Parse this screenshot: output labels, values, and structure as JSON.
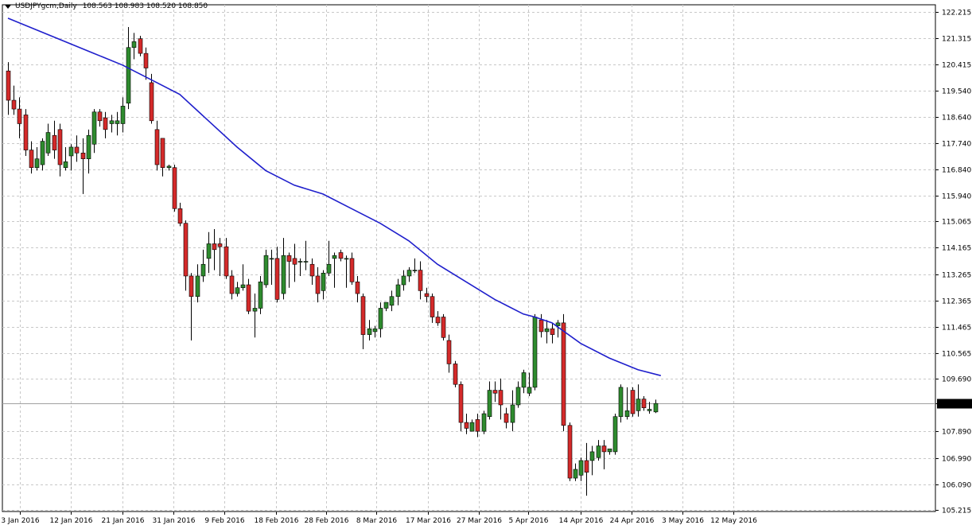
{
  "header": {
    "symbol_label": "USDJPYgcm,Daily",
    "ohlc_values": "108.563 108.983 108.520 108.850"
  },
  "colors": {
    "bull": "#2e8b2e",
    "bear": "#d42a2a",
    "ma_line": "#1f1fcc",
    "grid": "#c8c8c8",
    "axis": "#000000",
    "price_tag_bg": "#000000",
    "price_tag_text": "#ffffff"
  },
  "chart_data": {
    "type": "candlestick",
    "symbol": "USDJPYgcm",
    "timeframe": "Daily",
    "y_ticks": [
      "122.215",
      "121.315",
      "120.415",
      "119.540",
      "118.640",
      "117.740",
      "116.840",
      "115.940",
      "115.065",
      "114.165",
      "113.265",
      "112.365",
      "111.465",
      "110.565",
      "109.690",
      "108.850",
      "107.890",
      "106.990",
      "106.090",
      "105.215"
    ],
    "ylim": [
      105.215,
      122.215
    ],
    "current_price": "108.850",
    "x_tick_labels": [
      "3 Jan 2016",
      "12 Jan 2016",
      "21 Jan 2016",
      "31 Jan 2016",
      "9 Feb 2016",
      "18 Feb 2016",
      "28 Feb 2016",
      "8 Mar 2016",
      "17 Mar 2016",
      "27 Mar 2016",
      "5 Apr 2016",
      "14 Apr 2016",
      "24 Apr 2016",
      "3 May 2016",
      "12 May 2016"
    ],
    "candles": [
      {
        "o": 120.2,
        "h": 120.5,
        "l": 118.7,
        "c": 119.2
      },
      {
        "o": 119.2,
        "h": 119.7,
        "l": 118.7,
        "c": 118.9
      },
      {
        "o": 118.9,
        "h": 119.3,
        "l": 117.9,
        "c": 118.4
      },
      {
        "o": 118.7,
        "h": 118.9,
        "l": 117.3,
        "c": 117.5
      },
      {
        "o": 117.5,
        "h": 117.8,
        "l": 116.7,
        "c": 116.9
      },
      {
        "o": 116.9,
        "h": 117.6,
        "l": 116.8,
        "c": 117.2
      },
      {
        "o": 117.0,
        "h": 117.9,
        "l": 116.8,
        "c": 117.8
      },
      {
        "o": 117.4,
        "h": 118.4,
        "l": 117.3,
        "c": 118.1
      },
      {
        "o": 118.0,
        "h": 118.5,
        "l": 117.2,
        "c": 117.5
      },
      {
        "o": 118.2,
        "h": 118.4,
        "l": 116.6,
        "c": 117.0
      },
      {
        "o": 116.9,
        "h": 117.6,
        "l": 116.8,
        "c": 117.1
      },
      {
        "o": 117.3,
        "h": 117.7,
        "l": 116.8,
        "c": 117.6
      },
      {
        "o": 117.6,
        "h": 118.0,
        "l": 117.1,
        "c": 117.4
      },
      {
        "o": 117.4,
        "h": 117.9,
        "l": 116.0,
        "c": 117.2
      },
      {
        "o": 117.2,
        "h": 118.2,
        "l": 116.7,
        "c": 118.0
      },
      {
        "o": 117.7,
        "h": 118.9,
        "l": 117.4,
        "c": 118.8
      },
      {
        "o": 118.8,
        "h": 118.9,
        "l": 118.3,
        "c": 118.5
      },
      {
        "o": 118.6,
        "h": 118.8,
        "l": 117.9,
        "c": 118.2
      },
      {
        "o": 118.4,
        "h": 118.7,
        "l": 118.1,
        "c": 118.5
      },
      {
        "o": 118.4,
        "h": 118.8,
        "l": 118.0,
        "c": 118.5
      },
      {
        "o": 118.4,
        "h": 119.3,
        "l": 118.1,
        "c": 119.0
      },
      {
        "o": 119.1,
        "h": 121.7,
        "l": 118.9,
        "c": 121.0
      },
      {
        "o": 121.0,
        "h": 121.5,
        "l": 120.6,
        "c": 121.2
      },
      {
        "o": 121.3,
        "h": 121.4,
        "l": 120.7,
        "c": 120.8
      },
      {
        "o": 120.8,
        "h": 121.0,
        "l": 119.9,
        "c": 120.3
      },
      {
        "o": 119.8,
        "h": 120.1,
        "l": 118.4,
        "c": 118.5
      },
      {
        "o": 118.2,
        "h": 118.5,
        "l": 116.8,
        "c": 117.0
      },
      {
        "o": 117.9,
        "h": 117.9,
        "l": 116.6,
        "c": 116.9
      },
      {
        "o": 116.9,
        "h": 117.0,
        "l": 116.8,
        "c": 116.95
      },
      {
        "o": 116.9,
        "h": 117.0,
        "l": 115.4,
        "c": 115.5
      },
      {
        "o": 115.5,
        "h": 115.7,
        "l": 114.9,
        "c": 115.0
      },
      {
        "o": 115.0,
        "h": 115.1,
        "l": 112.7,
        "c": 113.2
      },
      {
        "o": 113.2,
        "h": 113.3,
        "l": 111.0,
        "c": 112.5
      },
      {
        "o": 112.5,
        "h": 113.6,
        "l": 112.3,
        "c": 113.2
      },
      {
        "o": 113.2,
        "h": 114.1,
        "l": 113.0,
        "c": 113.6
      },
      {
        "o": 113.8,
        "h": 114.7,
        "l": 113.3,
        "c": 114.3
      },
      {
        "o": 114.3,
        "h": 114.8,
        "l": 113.4,
        "c": 114.1
      },
      {
        "o": 114.3,
        "h": 114.5,
        "l": 113.2,
        "c": 114.2
      },
      {
        "o": 114.2,
        "h": 114.5,
        "l": 113.1,
        "c": 113.2
      },
      {
        "o": 113.2,
        "h": 113.4,
        "l": 112.4,
        "c": 112.6
      },
      {
        "o": 112.6,
        "h": 113.0,
        "l": 112.5,
        "c": 112.8
      },
      {
        "o": 112.8,
        "h": 113.6,
        "l": 112.7,
        "c": 112.9
      },
      {
        "o": 112.9,
        "h": 113.1,
        "l": 111.9,
        "c": 112.0
      },
      {
        "o": 112.0,
        "h": 112.6,
        "l": 111.1,
        "c": 112.1
      },
      {
        "o": 112.1,
        "h": 113.2,
        "l": 111.9,
        "c": 113.0
      },
      {
        "o": 112.9,
        "h": 114.1,
        "l": 112.8,
        "c": 113.9
      },
      {
        "o": 113.8,
        "h": 114.1,
        "l": 112.9,
        "c": 113.8
      },
      {
        "o": 113.8,
        "h": 114.2,
        "l": 112.3,
        "c": 112.4
      },
      {
        "o": 112.6,
        "h": 114.5,
        "l": 112.4,
        "c": 113.9
      },
      {
        "o": 113.9,
        "h": 114.0,
        "l": 112.8,
        "c": 113.7
      },
      {
        "o": 113.8,
        "h": 114.3,
        "l": 113.0,
        "c": 113.6
      },
      {
        "o": 113.7,
        "h": 113.8,
        "l": 113.2,
        "c": 113.7
      },
      {
        "o": 113.7,
        "h": 114.4,
        "l": 113.4,
        "c": 113.7
      },
      {
        "o": 113.6,
        "h": 113.8,
        "l": 112.9,
        "c": 113.2
      },
      {
        "o": 113.2,
        "h": 113.5,
        "l": 112.3,
        "c": 112.6
      },
      {
        "o": 112.7,
        "h": 113.4,
        "l": 112.4,
        "c": 113.3
      },
      {
        "o": 113.3,
        "h": 114.4,
        "l": 113.2,
        "c": 113.6
      },
      {
        "o": 113.8,
        "h": 114.0,
        "l": 112.8,
        "c": 113.9
      },
      {
        "o": 114.0,
        "h": 114.1,
        "l": 113.7,
        "c": 113.8
      },
      {
        "o": 113.8,
        "h": 113.9,
        "l": 112.8,
        "c": 113.8
      },
      {
        "o": 113.8,
        "h": 114.0,
        "l": 112.9,
        "c": 113.0
      },
      {
        "o": 113.0,
        "h": 113.2,
        "l": 112.3,
        "c": 112.6
      },
      {
        "o": 112.5,
        "h": 112.6,
        "l": 110.7,
        "c": 111.2
      },
      {
        "o": 111.2,
        "h": 111.7,
        "l": 111.0,
        "c": 111.4
      },
      {
        "o": 111.3,
        "h": 111.5,
        "l": 111.1,
        "c": 111.4
      },
      {
        "o": 111.4,
        "h": 112.3,
        "l": 111.1,
        "c": 112.1
      },
      {
        "o": 112.1,
        "h": 112.3,
        "l": 112.0,
        "c": 112.3
      },
      {
        "o": 112.2,
        "h": 112.7,
        "l": 112.0,
        "c": 112.5
      },
      {
        "o": 112.5,
        "h": 113.1,
        "l": 112.2,
        "c": 112.9
      },
      {
        "o": 112.9,
        "h": 113.4,
        "l": 112.7,
        "c": 113.2
      },
      {
        "o": 113.2,
        "h": 113.5,
        "l": 113.0,
        "c": 113.4
      },
      {
        "o": 113.4,
        "h": 113.8,
        "l": 113.3,
        "c": 113.4
      },
      {
        "o": 113.4,
        "h": 113.7,
        "l": 112.4,
        "c": 112.7
      },
      {
        "o": 112.6,
        "h": 112.8,
        "l": 112.3,
        "c": 112.5
      },
      {
        "o": 112.5,
        "h": 112.6,
        "l": 111.6,
        "c": 111.8
      },
      {
        "o": 111.8,
        "h": 112.0,
        "l": 111.5,
        "c": 111.6
      },
      {
        "o": 111.8,
        "h": 111.9,
        "l": 111.0,
        "c": 111.1
      },
      {
        "o": 111.0,
        "h": 111.2,
        "l": 109.9,
        "c": 110.2
      },
      {
        "o": 110.2,
        "h": 110.3,
        "l": 109.4,
        "c": 109.5
      },
      {
        "o": 109.5,
        "h": 109.6,
        "l": 107.9,
        "c": 108.2
      },
      {
        "o": 108.2,
        "h": 108.5,
        "l": 107.8,
        "c": 108.0
      },
      {
        "o": 107.9,
        "h": 108.3,
        "l": 107.9,
        "c": 108.2
      },
      {
        "o": 108.3,
        "h": 108.5,
        "l": 107.7,
        "c": 107.9
      },
      {
        "o": 107.9,
        "h": 108.6,
        "l": 107.8,
        "c": 108.5
      },
      {
        "o": 108.4,
        "h": 109.6,
        "l": 108.3,
        "c": 109.3
      },
      {
        "o": 109.3,
        "h": 109.6,
        "l": 108.9,
        "c": 109.2
      },
      {
        "o": 109.3,
        "h": 109.7,
        "l": 108.3,
        "c": 108.8
      },
      {
        "o": 108.5,
        "h": 108.7,
        "l": 108.0,
        "c": 108.2
      },
      {
        "o": 108.2,
        "h": 109.3,
        "l": 107.9,
        "c": 108.8
      },
      {
        "o": 108.8,
        "h": 109.6,
        "l": 108.7,
        "c": 109.4
      },
      {
        "o": 109.4,
        "h": 110.0,
        "l": 109.2,
        "c": 109.9
      },
      {
        "o": 109.2,
        "h": 109.9,
        "l": 109.1,
        "c": 109.4
      },
      {
        "o": 109.4,
        "h": 111.9,
        "l": 109.3,
        "c": 111.8
      },
      {
        "o": 111.7,
        "h": 111.9,
        "l": 111.1,
        "c": 111.3
      },
      {
        "o": 111.3,
        "h": 111.7,
        "l": 110.9,
        "c": 111.4
      },
      {
        "o": 111.4,
        "h": 111.6,
        "l": 110.9,
        "c": 111.2
      },
      {
        "o": 111.5,
        "h": 111.7,
        "l": 111.1,
        "c": 111.6
      },
      {
        "o": 111.6,
        "h": 111.9,
        "l": 107.9,
        "c": 108.1
      },
      {
        "o": 108.1,
        "h": 108.2,
        "l": 106.2,
        "c": 106.3
      },
      {
        "o": 106.3,
        "h": 106.8,
        "l": 106.2,
        "c": 106.6
      },
      {
        "o": 106.4,
        "h": 107.0,
        "l": 106.2,
        "c": 106.9
      },
      {
        "o": 106.9,
        "h": 107.5,
        "l": 105.7,
        "c": 106.5
      },
      {
        "o": 106.9,
        "h": 107.4,
        "l": 106.4,
        "c": 107.2
      },
      {
        "o": 107.0,
        "h": 107.6,
        "l": 106.9,
        "c": 107.4
      },
      {
        "o": 107.4,
        "h": 107.6,
        "l": 106.6,
        "c": 107.2
      },
      {
        "o": 107.2,
        "h": 107.3,
        "l": 107.1,
        "c": 107.3
      },
      {
        "o": 107.2,
        "h": 108.5,
        "l": 107.1,
        "c": 108.4
      },
      {
        "o": 108.4,
        "h": 109.5,
        "l": 108.2,
        "c": 109.4
      },
      {
        "o": 108.4,
        "h": 109.4,
        "l": 108.3,
        "c": 108.6
      },
      {
        "o": 109.3,
        "h": 109.4,
        "l": 108.4,
        "c": 108.5
      },
      {
        "o": 108.6,
        "h": 109.5,
        "l": 108.4,
        "c": 109.0
      },
      {
        "o": 109.0,
        "h": 109.1,
        "l": 108.6,
        "c": 108.7
      },
      {
        "o": 108.6,
        "h": 108.9,
        "l": 108.5,
        "c": 108.65
      },
      {
        "o": 108.56,
        "h": 108.98,
        "l": 108.52,
        "c": 108.85
      }
    ],
    "moving_average": [
      [
        0,
        122.0
      ],
      [
        5,
        121.6
      ],
      [
        10,
        121.2
      ],
      [
        15,
        120.8
      ],
      [
        20,
        120.4
      ],
      [
        22,
        120.2
      ],
      [
        25,
        119.9
      ],
      [
        30,
        119.4
      ],
      [
        35,
        118.5
      ],
      [
        40,
        117.6
      ],
      [
        45,
        116.8
      ],
      [
        50,
        116.3
      ],
      [
        55,
        116.0
      ],
      [
        60,
        115.5
      ],
      [
        65,
        115.0
      ],
      [
        70,
        114.4
      ],
      [
        75,
        113.6
      ],
      [
        80,
        113.0
      ],
      [
        85,
        112.4
      ],
      [
        90,
        111.9
      ],
      [
        92,
        111.8
      ],
      [
        95,
        111.6
      ],
      [
        100,
        110.9
      ],
      [
        105,
        110.4
      ],
      [
        110,
        110.0
      ],
      [
        114,
        109.8
      ]
    ],
    "grid": true
  }
}
